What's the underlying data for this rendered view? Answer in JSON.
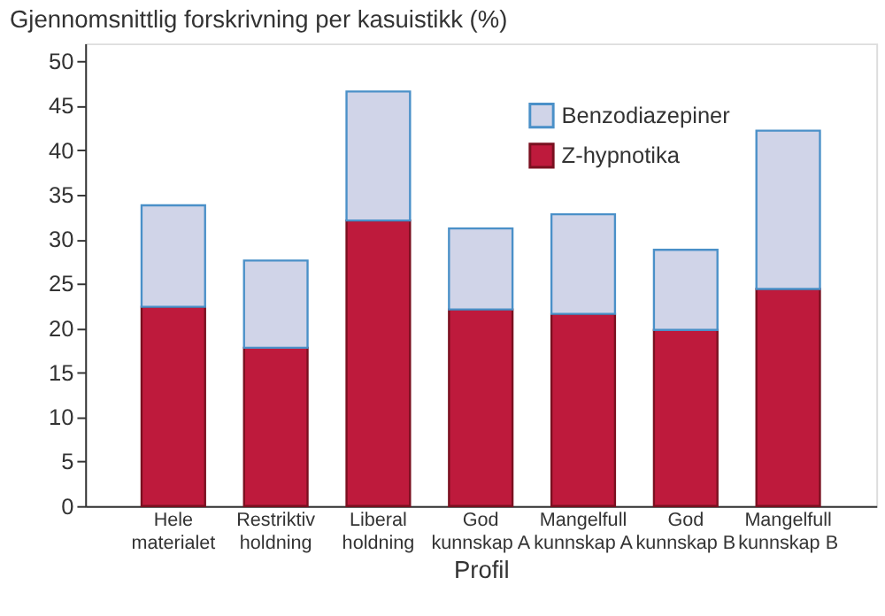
{
  "chart_data": {
    "type": "bar",
    "stacked": true,
    "title": "Gjennomsnittlig forskrivning per kasuistikk (%)",
    "xlabel": "Profil",
    "categories": [
      "Hele\nmaterialet",
      "Restriktiv\nholdning",
      "Liberal\nholdning",
      "God\nkunnskap A",
      "Mangelfull\nkunnskap A",
      "God\nkunnskap B",
      "Mangelfull\nkunnskap B"
    ],
    "series": [
      {
        "name": "Z-hypnotika",
        "color": "#be1a3c",
        "values": [
          22.4,
          17.8,
          32.1,
          22.1,
          21.6,
          19.8,
          24.4
        ]
      },
      {
        "name": "Benzodiazepiner",
        "color": "#d0d4e8",
        "values": [
          11.4,
          9.8,
          14.5,
          9.1,
          11.2,
          9.0,
          17.8
        ]
      }
    ],
    "ylim": [
      0,
      52
    ],
    "yticks": [
      0,
      5,
      10,
      15,
      20,
      25,
      30,
      35,
      40,
      45,
      50
    ],
    "grid": false,
    "legend": "top right"
  }
}
